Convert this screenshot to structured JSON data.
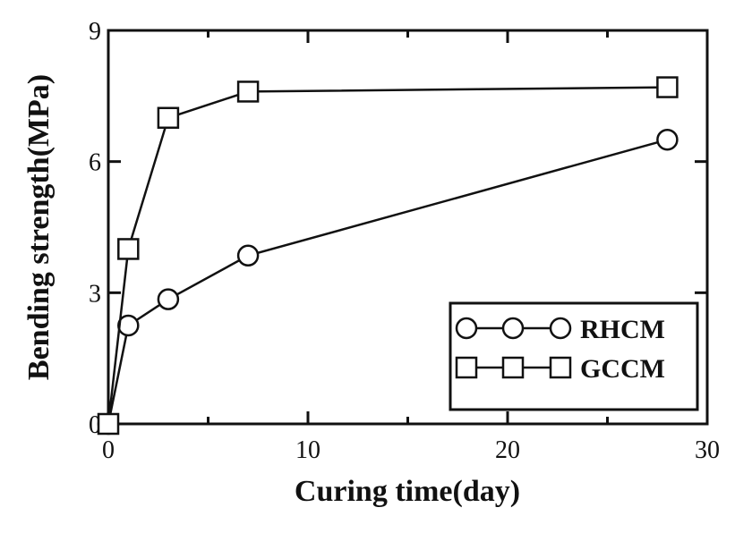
{
  "chart_data": {
    "type": "line",
    "title": "",
    "xlabel": "Curing time(day)",
    "ylabel": "Bending strength(MPa)",
    "xlim": [
      0,
      30
    ],
    "ylim": [
      0,
      9
    ],
    "xticks": [
      0,
      10,
      20,
      30
    ],
    "xtick_labels": [
      "0",
      "10",
      "20",
      "30"
    ],
    "xminor": [
      5,
      15,
      25
    ],
    "yticks": [
      0,
      3,
      6,
      9
    ],
    "ytick_labels": [
      "0",
      "3",
      "6",
      "9"
    ],
    "grid": false,
    "legend_position": "bottom-right",
    "series": [
      {
        "name": "RHCM",
        "marker": "circle",
        "x": [
          0,
          1,
          3,
          7,
          28
        ],
        "y": [
          0,
          2.25,
          2.85,
          3.85,
          6.5
        ]
      },
      {
        "name": "GCCM",
        "marker": "square",
        "x": [
          0,
          1,
          3,
          7,
          28
        ],
        "y": [
          0,
          4.0,
          7.0,
          7.6,
          7.7
        ]
      }
    ],
    "colors": {
      "line": "#111111",
      "marker_fill": "#ffffff"
    }
  }
}
